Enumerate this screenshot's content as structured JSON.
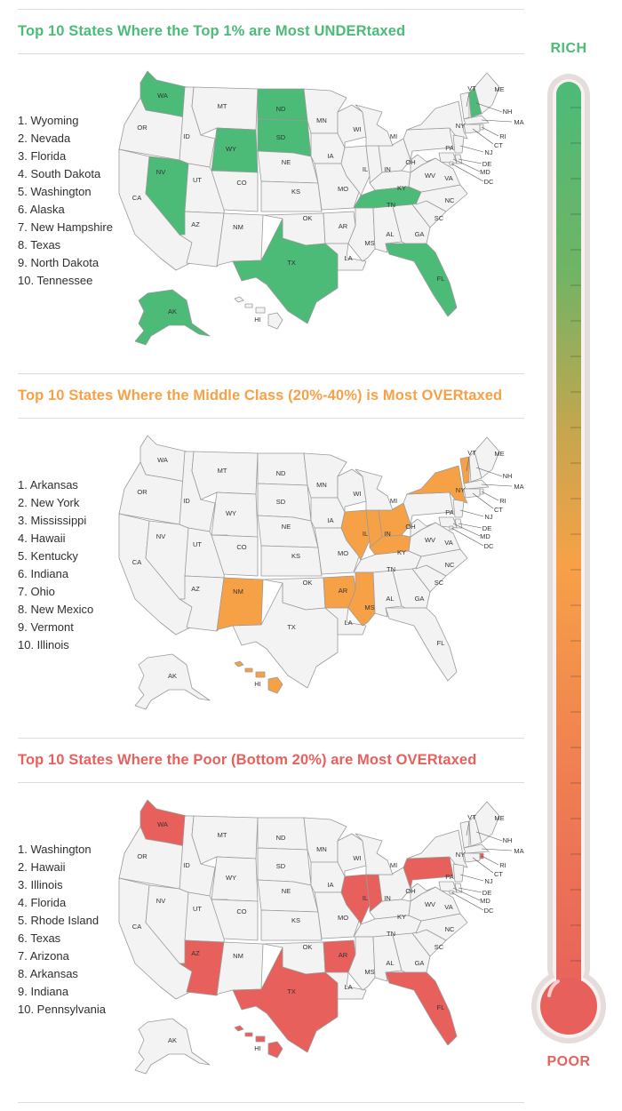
{
  "colors": {
    "rich": "#4cbb78",
    "middle": "#f7a147",
    "poor": "#e8605c",
    "state_default": "#f3f3f3",
    "state_border": "#9a9a9a"
  },
  "thermometer": {
    "top_label": "RICH",
    "bottom_label": "POOR"
  },
  "sections": [
    {
      "title": "Top 10 States Where the Top 1% are Most UNDERtaxed",
      "color": "#4cbb78",
      "ranking": [
        "1. Wyoming",
        "2. Nevada",
        "3. Florida",
        "4. South Dakota",
        "5. Washington",
        "6. Alaska",
        "7. New Hampshire",
        "8. Texas",
        "9. North Dakota",
        "10. Tennessee"
      ],
      "highlighted": [
        "WY",
        "NV",
        "FL",
        "SD",
        "WA",
        "AK",
        "NH",
        "TX",
        "ND",
        "TN"
      ]
    },
    {
      "title": "Top 10 States Where the Middle Class (20%-40%) is Most OVERtaxed",
      "color": "#f7a147",
      "ranking": [
        "1. Arkansas",
        "2. New York",
        "3. Mississippi",
        "4. Hawaii",
        "5. Kentucky",
        "6. Indiana",
        "7. Ohio",
        "8. New Mexico",
        "9. Vermont",
        "10. Illinois"
      ],
      "highlighted": [
        "AR",
        "NY",
        "MS",
        "HI",
        "KY",
        "IN",
        "OH",
        "NM",
        "VT",
        "IL"
      ]
    },
    {
      "title": "Top 10 States Where the Poor (Bottom 20%) are Most OVERtaxed",
      "color": "#e8605c",
      "ranking": [
        "1. Washington",
        "2. Hawaii",
        "3. Illinois",
        "4. Florida",
        "5. Rhode Island",
        "6. Texas",
        "7. Arizona",
        "8. Arkansas",
        "9. Indiana",
        "10. Pennsylvania"
      ],
      "highlighted": [
        "WA",
        "HI",
        "IL",
        "FL",
        "RI",
        "TX",
        "AZ",
        "AR",
        "IN",
        "PA"
      ]
    }
  ]
}
